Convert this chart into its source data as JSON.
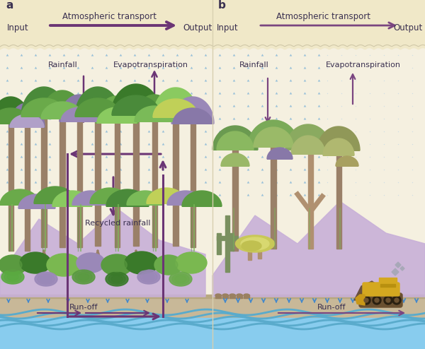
{
  "bg_top_color": "#f0e8c8",
  "bg_main_color": "#f5f0e0",
  "bg_main_color2": "#f0ead0",
  "mountain_color": "#c8b0d8",
  "ground_color": "#c8b898",
  "ground_dark": "#b8a880",
  "water_bg": "#88ccee",
  "water_wave": "#5aabcc",
  "water_base": "#aaddf0",
  "arrow_color": "#6b3575",
  "arrow_color_b": "#7a4580",
  "label_color": "#3a3050",
  "dot_color_rain": "#88b8d8",
  "dot_color_rain2": "#aad0e8",
  "dot_color_ground": "#4488cc",
  "sep_color": "#d8d0b0",
  "zigzag_color": "#d0c8a8",
  "title_a": "a",
  "title_b": "b",
  "atm_label": "Atmospheric transport",
  "input_label": "Input",
  "output_label": "Output",
  "rainfall_label": "Rainfall",
  "evap_label": "Evapotranspiration",
  "recycled_label": "Recycled rainfall",
  "runoff_label": "Run-off",
  "t_brown": "#9a8068",
  "t_brown2": "#b09070",
  "t_green1": "#4a8a3a",
  "t_green2": "#5a9a40",
  "t_green3": "#6aaa4a",
  "t_green4": "#7aba58",
  "t_green5": "#8aca60",
  "t_green6": "#a8c870",
  "t_lime": "#c0d058",
  "t_purple1": "#8878a8",
  "t_purple2": "#9a88b8",
  "t_purple3": "#b0a0c8",
  "t_olive": "#909858",
  "t_olive2": "#b0b870",
  "t_khaki": "#a8a060",
  "cactus": "#7a9060",
  "dozer_yellow": "#d4a820",
  "dozer_dark": "#b89010",
  "dozer_body": "#c89818",
  "dozer_track": "#6a5030",
  "dozer_wheel": "#2a2010",
  "dirt_color": "#6a5040",
  "diamond_color": "#a8a8b8",
  "stump_color": "#9a8060"
}
